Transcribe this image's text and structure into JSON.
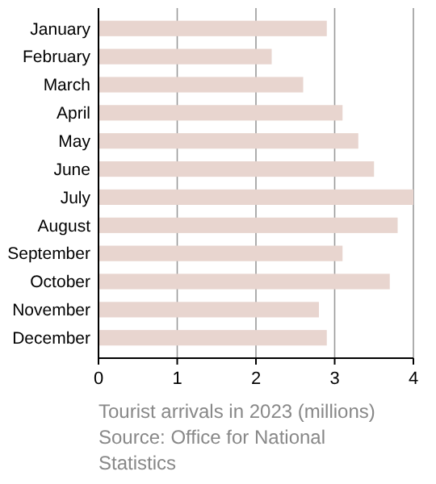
{
  "chart_data": {
    "type": "bar",
    "orientation": "horizontal",
    "categories": [
      "January",
      "February",
      "March",
      "April",
      "May",
      "June",
      "July",
      "August",
      "September",
      "October",
      "November",
      "December"
    ],
    "values": [
      2.9,
      2.2,
      2.6,
      3.1,
      3.3,
      3.5,
      4.0,
      3.8,
      3.1,
      3.7,
      2.8,
      2.9
    ],
    "color": "#e8d5cf",
    "xlim": [
      0,
      4
    ],
    "xticks": [
      0,
      1,
      2,
      3,
      4
    ],
    "grid": "x",
    "xlabel": "Tourist arrivals in 2023 (millions)",
    "annotations": [
      "Source: Office for National Statistics"
    ]
  }
}
